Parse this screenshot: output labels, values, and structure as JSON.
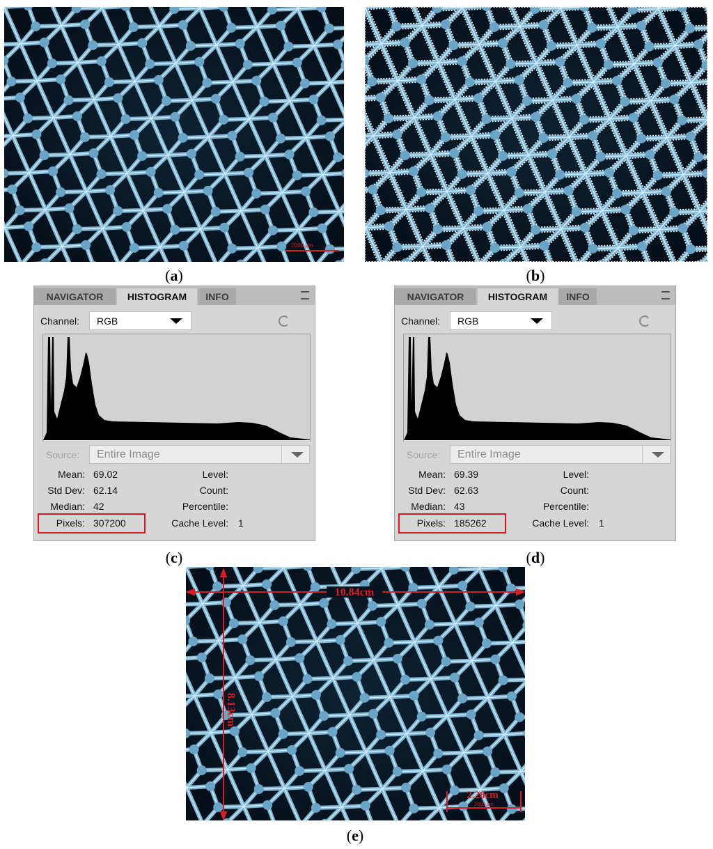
{
  "panels": {
    "a": {
      "label": [
        "(",
        "a",
        ")"
      ],
      "scale_bar": "2000 μm"
    },
    "b": {
      "label": [
        "(",
        "b",
        ")"
      ]
    },
    "c": {
      "label": [
        "(",
        "c",
        ")"
      ],
      "tabs": [
        "NAVIGATOR",
        "HISTOGRAM",
        "INFO"
      ],
      "channel_label": "Channel:",
      "channel": "RGB",
      "source_label": "Source:",
      "source": "Entire Image",
      "stats_left": [
        {
          "label": "Mean:",
          "value": 69.02
        },
        {
          "label": "Std Dev:",
          "value": 62.14
        },
        {
          "label": "Median:",
          "value": 42
        },
        {
          "label": "Pixels:",
          "value": 307200
        }
      ],
      "stats_right": [
        {
          "label": "Level:"
        },
        {
          "label": "Count:"
        },
        {
          "label": "Percentile:"
        },
        {
          "label": "Cache Level:",
          "value": 1
        }
      ]
    },
    "d": {
      "label": [
        "(",
        "d",
        ")"
      ],
      "tabs": [
        "NAVIGATOR",
        "HISTOGRAM",
        "INFO"
      ],
      "channel_label": "Channel:",
      "channel": "RGB",
      "source_label": "Source:",
      "source": "Entire Image",
      "stats_left": [
        {
          "label": "Mean:",
          "value": 69.39
        },
        {
          "label": "Std Dev:",
          "value": 62.63
        },
        {
          "label": "Median:",
          "value": 43
        },
        {
          "label": "Pixels:",
          "value": 185262
        }
      ],
      "stats_right": [
        {
          "label": "Level:"
        },
        {
          "label": "Count:"
        },
        {
          "label": "Percentile:"
        },
        {
          "label": "Cache Level:",
          "value": 1
        }
      ]
    },
    "e": {
      "label": [
        "(",
        "e",
        ")"
      ],
      "width_label": "10.84cm",
      "height_label": "8.13cm",
      "mesh_label": "2.28cm",
      "scale_bar": "2000 μm"
    }
  }
}
